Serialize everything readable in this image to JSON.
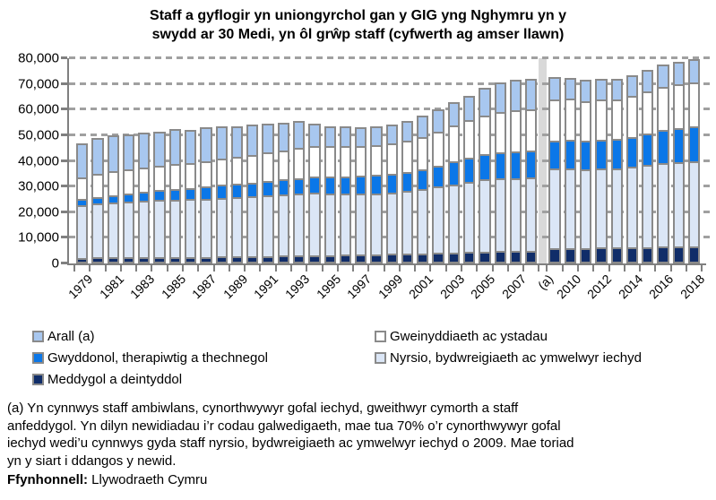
{
  "title": {
    "lines": [
      "Staff a gyflogir yn uniongyrchol gan y GIG yng Nghymru yn y",
      "swydd ar 30 Medi, yn ôl grŵp staff (cyfwerth ag amser llawn)"
    ]
  },
  "chart_data": {
    "type": "bar",
    "subtype": "stacked-bar",
    "ylim": [
      0,
      80000
    ],
    "ytick_step": 10000,
    "yticks": [
      {
        "value": 80000,
        "label": "80,000"
      },
      {
        "value": 70000,
        "label": "70,000"
      },
      {
        "value": 60000,
        "label": "60,000"
      },
      {
        "value": 50000,
        "label": "50,000"
      },
      {
        "value": 40000,
        "label": "40,000"
      },
      {
        "value": 30000,
        "label": "30,000"
      },
      {
        "value": 20000,
        "label": "20,000"
      },
      {
        "value": 10000,
        "label": "10,000"
      },
      {
        "value": 0,
        "label": "0"
      }
    ],
    "grid": "dashed-horizontal",
    "break": {
      "after_year": 2008,
      "label": "(a)",
      "color": "#d9d9d9"
    },
    "series_bottom_to_top": [
      {
        "name": "Meddygol a deintyddol",
        "color": "#102d69"
      },
      {
        "name": "Nyrsio, bydwreigiaeth ac ymwelwyr iechyd",
        "color": "#dbe6f6"
      },
      {
        "name": "Gwyddonol, therapiwtig a thechnegol",
        "color": "#0b77e8"
      },
      {
        "name": "Gweinyddiaeth ac ystadau",
        "color": "#ffffff"
      },
      {
        "name": "Arall (a)",
        "color": "#a8c7ef"
      }
    ],
    "bars": [
      {
        "year": 1979,
        "label": "1979",
        "values": [
          2200,
          20500,
          2400,
          8500,
          13400
        ]
      },
      {
        "year": 1980,
        "label": "",
        "values": [
          2300,
          21000,
          2700,
          9000,
          14000
        ]
      },
      {
        "year": 1981,
        "label": "1981",
        "values": [
          2300,
          21400,
          3000,
          9200,
          14100
        ]
      },
      {
        "year": 1982,
        "label": "",
        "values": [
          2400,
          21700,
          3300,
          9300,
          13600
        ]
      },
      {
        "year": 1983,
        "label": "1983",
        "values": [
          2400,
          22000,
          3600,
          9400,
          13600
        ]
      },
      {
        "year": 1984,
        "label": "",
        "values": [
          2500,
          22200,
          3900,
          9500,
          13400
        ]
      },
      {
        "year": 1985,
        "label": "1985",
        "values": [
          2500,
          22400,
          4200,
          9700,
          13700
        ]
      },
      {
        "year": 1986,
        "label": "",
        "values": [
          2600,
          22500,
          4400,
          9800,
          12700
        ]
      },
      {
        "year": 1987,
        "label": "1987",
        "values": [
          2600,
          22700,
          4700,
          10000,
          13000
        ]
      },
      {
        "year": 1988,
        "label": "",
        "values": [
          2700,
          22900,
          5000,
          10300,
          12600
        ]
      },
      {
        "year": 1989,
        "label": "1989",
        "values": [
          2700,
          23100,
          5200,
          10600,
          11900
        ]
      },
      {
        "year": 1990,
        "label": "",
        "values": [
          2800,
          23300,
          5400,
          10900,
          11600
        ]
      },
      {
        "year": 1991,
        "label": "1991",
        "values": [
          2900,
          23600,
          5600,
          11100,
          11300
        ]
      },
      {
        "year": 1992,
        "label": "",
        "values": [
          3000,
          23800,
          5900,
          11400,
          10900
        ]
      },
      {
        "year": 1993,
        "label": "1993",
        "values": [
          3100,
          24100,
          6100,
          11700,
          10500
        ]
      },
      {
        "year": 1994,
        "label": "",
        "values": [
          3200,
          24300,
          6400,
          12000,
          8600
        ]
      },
      {
        "year": 1995,
        "label": "1995",
        "values": [
          3300,
          24000,
          6600,
          11800,
          7800
        ]
      },
      {
        "year": 1996,
        "label": "",
        "values": [
          3400,
          23800,
          6800,
          11700,
          7800
        ]
      },
      {
        "year": 1997,
        "label": "1997",
        "values": [
          3500,
          23700,
          7000,
          11500,
          7300
        ]
      },
      {
        "year": 1998,
        "label": "",
        "values": [
          3600,
          23800,
          7200,
          11600,
          7300
        ]
      },
      {
        "year": 1999,
        "label": "1999",
        "values": [
          3700,
          24000,
          7400,
          11700,
          7200
        ]
      },
      {
        "year": 2000,
        "label": "",
        "values": [
          3800,
          24400,
          7600,
          12000,
          7700
        ]
      },
      {
        "year": 2001,
        "label": "2001",
        "values": [
          3900,
          25000,
          7900,
          12500,
          8200
        ]
      },
      {
        "year": 2002,
        "label": "",
        "values": [
          4100,
          25800,
          8300,
          13200,
          8600
        ]
      },
      {
        "year": 2003,
        "label": "2003",
        "values": [
          4300,
          26600,
          8800,
          14000,
          9300
        ]
      },
      {
        "year": 2004,
        "label": "",
        "values": [
          4500,
          27300,
          9300,
          14700,
          9700
        ]
      },
      {
        "year": 2005,
        "label": "2005",
        "values": [
          4700,
          28000,
          9800,
          15300,
          10700
        ]
      },
      {
        "year": 2006,
        "label": "",
        "values": [
          4800,
          28300,
          10200,
          15700,
          11500
        ]
      },
      {
        "year": 2007,
        "label": "2007",
        "values": [
          4900,
          28400,
          10500,
          15900,
          11800
        ]
      },
      {
        "year": 2008,
        "label": "",
        "values": [
          5000,
          28500,
          10600,
          16000,
          11900
        ]
      },
      {
        "year": 2009,
        "label": "",
        "values": [
          6000,
          31000,
          11000,
          16000,
          8500
        ]
      },
      {
        "year": 2010,
        "label": "2010",
        "values": [
          6100,
          31000,
          11100,
          16000,
          8300
        ]
      },
      {
        "year": 2011,
        "label": "",
        "values": [
          6100,
          30600,
          11000,
          15700,
          8100
        ]
      },
      {
        "year": 2012,
        "label": "2012",
        "values": [
          6200,
          30800,
          11200,
          15700,
          8100
        ]
      },
      {
        "year": 2013,
        "label": "",
        "values": [
          6200,
          30900,
          11300,
          15600,
          8000
        ]
      },
      {
        "year": 2014,
        "label": "2014",
        "values": [
          6300,
          31300,
          11700,
          16000,
          8200
        ]
      },
      {
        "year": 2015,
        "label": "",
        "values": [
          6400,
          32000,
          12200,
          16400,
          8500
        ]
      },
      {
        "year": 2016,
        "label": "2016",
        "values": [
          6500,
          32600,
          12800,
          17000,
          8600
        ]
      },
      {
        "year": 2017,
        "label": "",
        "values": [
          6500,
          33000,
          13100,
          17300,
          8600
        ]
      },
      {
        "year": 2018,
        "label": "2018",
        "values": [
          6600,
          33300,
          13400,
          17400,
          8800
        ]
      }
    ]
  },
  "legend": {
    "left": [
      {
        "label": "Arall (a)",
        "color": "#a8c7ef"
      },
      {
        "label": "Gwyddonol, therapiwtig a thechnegol",
        "color": "#0b77e8"
      },
      {
        "label": "Meddygol a deintyddol",
        "color": "#102d69"
      }
    ],
    "right": [
      {
        "label": "Gweinyddiaeth ac ystadau",
        "color": "#ffffff"
      },
      {
        "label": "Nyrsio, bydwreigiaeth ac ymwelwyr iechyd",
        "color": "#dbe6f6"
      }
    ]
  },
  "footnote": {
    "lines": [
      "(a) Yn cynnwys staff ambiwlans, cynorthwywyr gofal iechyd, gweithwyr cymorth a staff",
      "anfeddygol. Yn dilyn newidiadau i’r codau galwedigaeth, mae tua 70% o’r cynorthwywyr gofal",
      "iechyd wedi’u cynnwys gyda staff nyrsio, bydwreigiaeth ac ymwelwyr iechyd o 2009. Mae toriad",
      "yn y siart i ddangos y newid."
    ]
  },
  "source": {
    "label": "Ffynhonnell:",
    "value": " Llywodraeth Cymru"
  }
}
